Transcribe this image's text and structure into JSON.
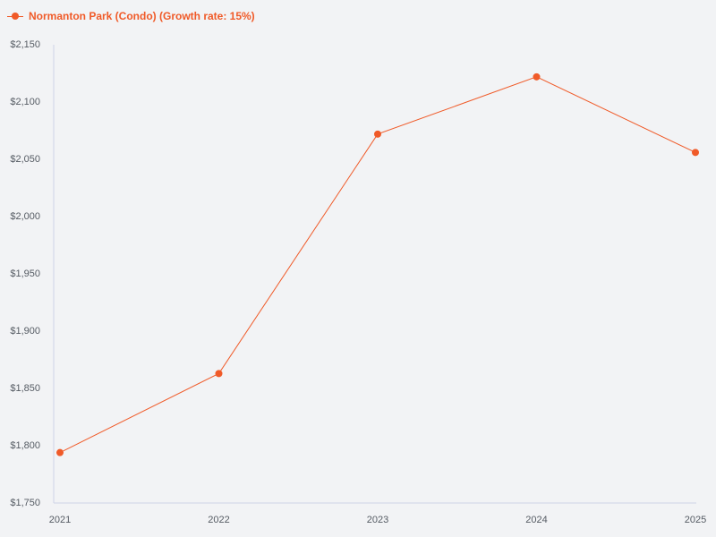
{
  "colors": {
    "series": "#f05a28",
    "axis": "#cfd3e6",
    "tick_text": "#555b63",
    "background": "#f2f3f5"
  },
  "legend": {
    "position": "top-left",
    "label": "Normanton Park (Condo) (Growth rate: 15%)",
    "marker_icon": "line-dot-marker"
  },
  "chart_data": {
    "type": "line",
    "title": "",
    "xlabel": "",
    "ylabel": "",
    "categories": [
      "2021",
      "2022",
      "2023",
      "2024",
      "2025"
    ],
    "series": [
      {
        "name": "Normanton Park (Condo) (Growth rate: 15%)",
        "values": [
          1794,
          1863,
          2072,
          2122,
          2056
        ]
      }
    ],
    "ylim": [
      1750,
      2150
    ],
    "yticks": [
      1750,
      1800,
      1850,
      1900,
      1950,
      2000,
      2050,
      2100,
      2150
    ],
    "ytick_labels": [
      "$1,750",
      "$1,800",
      "$1,850",
      "$1,900",
      "$1,950",
      "$2,000",
      "$2,050",
      "$2,100",
      "$2,150"
    ],
    "grid": false,
    "markers": true
  }
}
